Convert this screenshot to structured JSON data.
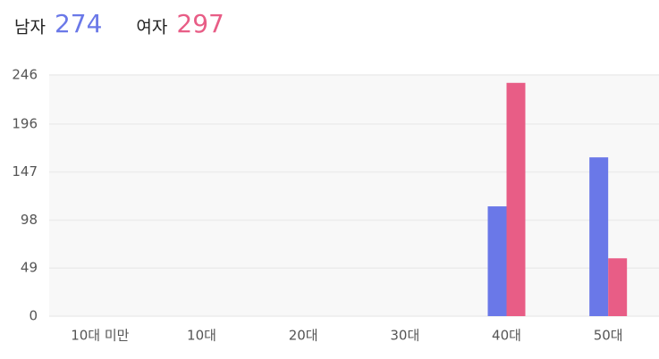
{
  "chart_data": {
    "type": "bar",
    "categories": [
      "10대 미만",
      "10대",
      "20대",
      "30대",
      "40대",
      "50대"
    ],
    "series": [
      {
        "name": "남자",
        "total": 274,
        "color": "#6a78e8",
        "values": [
          0,
          0,
          0,
          0,
          112,
          162
        ]
      },
      {
        "name": "여자",
        "total": 297,
        "color": "#e85d86",
        "values": [
          0,
          0,
          0,
          0,
          238,
          59
        ]
      }
    ],
    "ylim": [
      0,
      246
    ],
    "yticks": [
      0,
      49,
      98,
      147,
      196,
      246
    ],
    "grid": true
  }
}
